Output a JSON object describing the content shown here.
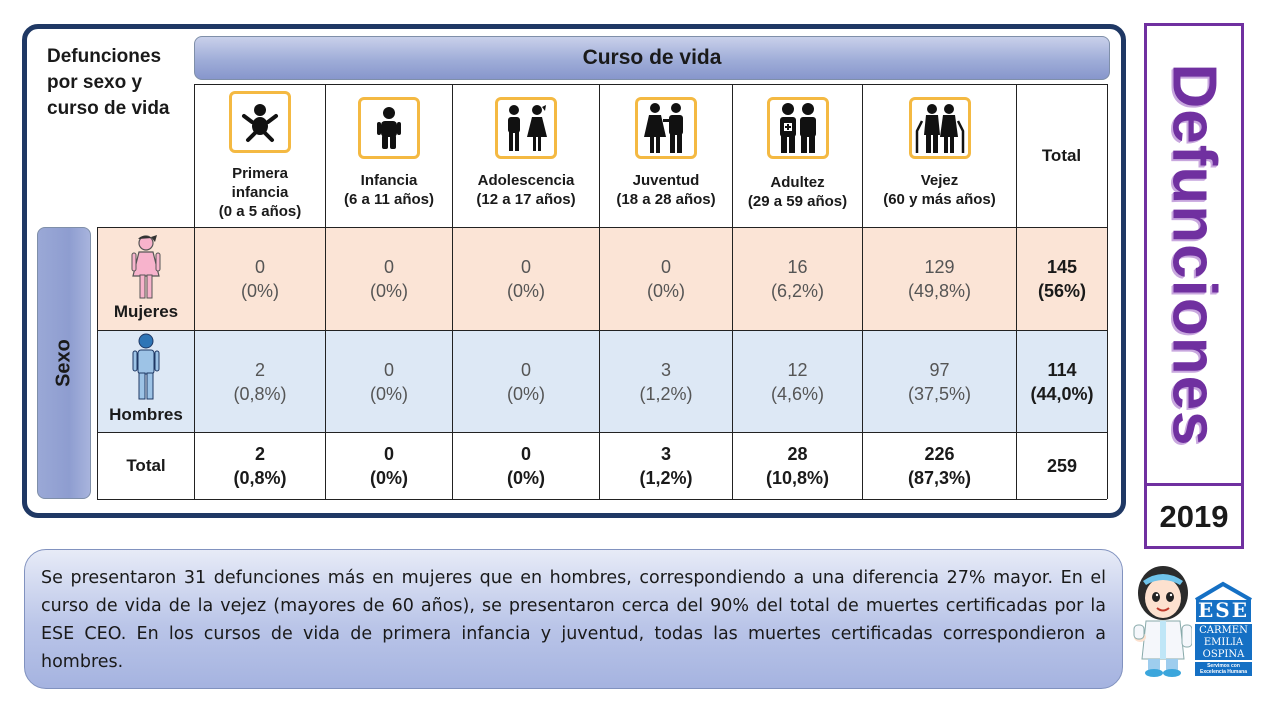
{
  "corner_title": "Defunciones por sexo y curso de vida",
  "curso_title": "Curso de vida",
  "sexo_title": "Sexo",
  "columns": [
    {
      "line1": "Primera",
      "line2": "infancia",
      "line3": "(0 a 5 años)",
      "icon": "baby-icon"
    },
    {
      "line1": "Infancia",
      "line2": "(6 a 11 años)",
      "line3": "",
      "icon": "child-icon"
    },
    {
      "line1": "Adolescencia",
      "line2": "(12 a 17 años)",
      "line3": "",
      "icon": "adolescents-icon"
    },
    {
      "line1": "Juventud",
      "line2": "(18 a 28 años)",
      "line3": "",
      "icon": "young-couple-icon"
    },
    {
      "line1": "Adultez",
      "line2": "(29 a 59 años)",
      "line3": "",
      "icon": "adults-icon"
    },
    {
      "line1": "Vejez",
      "line2": "(60 y más años)",
      "line3": "",
      "icon": "elderly-icon"
    }
  ],
  "total_header": "Total",
  "rows": {
    "mujeres": {
      "label": "Mujeres",
      "icon": "woman-icon",
      "color": "#fbe4d6",
      "cells": [
        {
          "n": "0",
          "p": "(0%)"
        },
        {
          "n": "0",
          "p": "(0%)"
        },
        {
          "n": "0",
          "p": "(0%)"
        },
        {
          "n": "0",
          "p": "(0%)"
        },
        {
          "n": "16",
          "p": "(6,2%)"
        },
        {
          "n": "129",
          "p": "(49,8%)"
        }
      ],
      "total": {
        "n": "145",
        "p": "(56%)"
      }
    },
    "hombres": {
      "label": "Hombres",
      "icon": "man-icon",
      "color": "#dde8f5",
      "cells": [
        {
          "n": "2",
          "p": "(0,8%)"
        },
        {
          "n": "0",
          "p": "(0%)"
        },
        {
          "n": "0",
          "p": "(0%)"
        },
        {
          "n": "3",
          "p": "(1,2%)"
        },
        {
          "n": "12",
          "p": "(4,6%)"
        },
        {
          "n": "97",
          "p": "(37,5%)"
        }
      ],
      "total": {
        "n": "114",
        "p": "(44,0%)"
      }
    },
    "total": {
      "label": "Total",
      "cells": [
        {
          "n": "2",
          "p": "(0,8%)"
        },
        {
          "n": "0",
          "p": "(0%)"
        },
        {
          "n": "0",
          "p": "(0%)"
        },
        {
          "n": "3",
          "p": "(1,2%)"
        },
        {
          "n": "28",
          "p": "(10,8%)"
        },
        {
          "n": "226",
          "p": "(87,3%)"
        }
      ],
      "grand_total": "259"
    }
  },
  "side_title": "Defunciones",
  "year": "2019",
  "summary": "Se presentaron 31 defunciones más en mujeres que en hombres, correspondiendo a una diferencia 27% mayor. En el curso de vida de la vejez (mayores de 60 años), se presentaron cerca del 90% del total de muertes certificadas por la ESE CEO. En los cursos de vida de primera infancia y juventud, todas las muertes certificadas correspondieron a hombres.",
  "logo": {
    "line1": "ESE",
    "line2": "CARMEN",
    "line3": "EMILIA",
    "line4": "OSPINA",
    "tagline1": "Servimos con",
    "tagline2": "Excelencia Humana"
  },
  "colors": {
    "frame": "#1f3864",
    "accent_purple": "#7030a0",
    "icon_border": "#f4b942",
    "women_row": "#fbe4d6",
    "men_row": "#dde8f5"
  }
}
